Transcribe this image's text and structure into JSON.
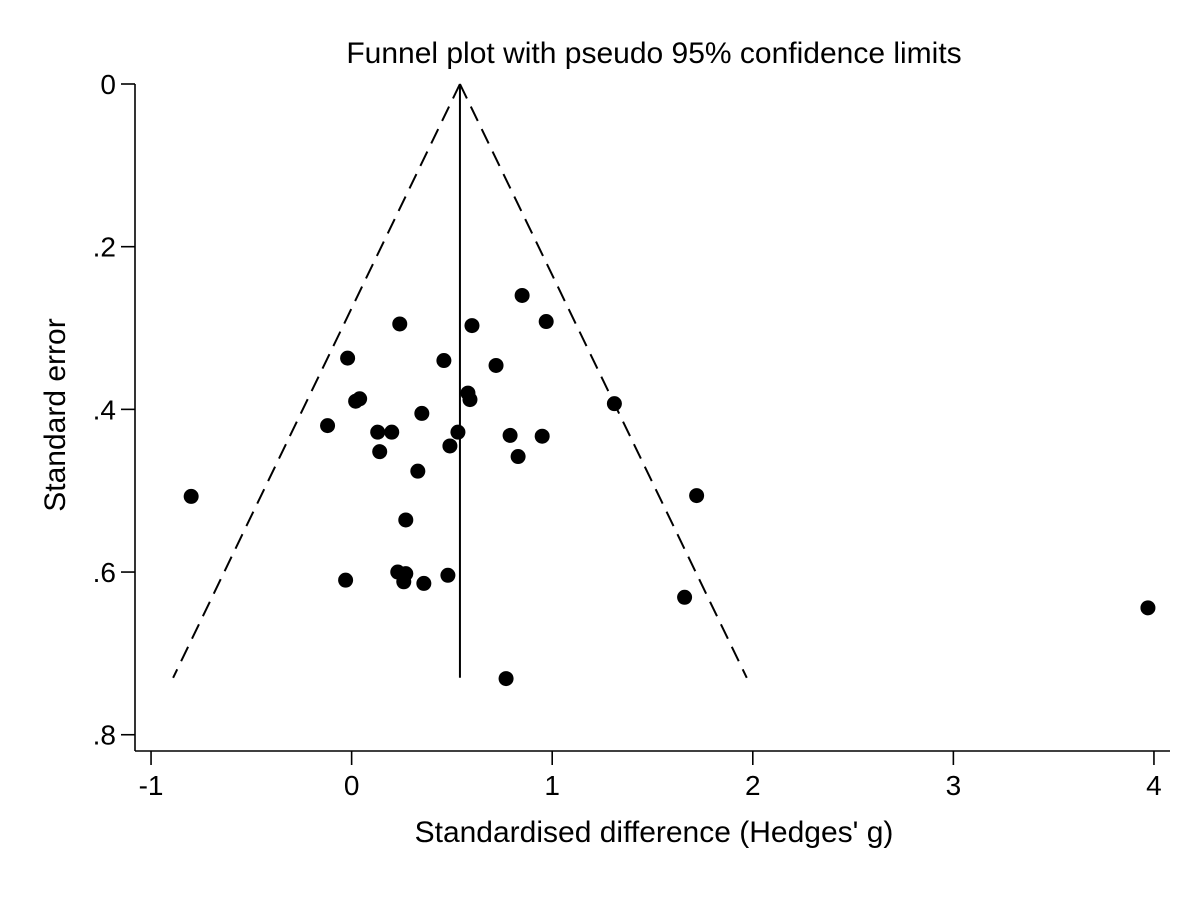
{
  "chart_data": {
    "type": "scatter",
    "title": "Funnel plot with pseudo 95% confidence limits",
    "xlabel": "Standardised difference (Hedges' g)",
    "ylabel": "Standard error",
    "xlim": [
      -1.08,
      4.08
    ],
    "ylim": [
      0,
      0.82
    ],
    "y_reversed": true,
    "xticks": [
      -1,
      0,
      1,
      2,
      3,
      4
    ],
    "xtick_labels": [
      "-1",
      "0",
      "1",
      "2",
      "3",
      "4"
    ],
    "yticks": [
      0,
      0.2,
      0.4,
      0.6,
      0.8
    ],
    "ytick_labels": [
      "0",
      ".2",
      ".4",
      ".6",
      ".8"
    ],
    "grid": false,
    "pooled_effect": 0.54,
    "confidence_limits": {
      "se_max": 0.73,
      "lower_at_se_max": -0.89,
      "upper_at_se_max": 1.97,
      "style": "dashed"
    },
    "series": [
      {
        "points": [
          {
            "x": 0.85,
            "y": 0.26
          },
          {
            "x": 0.24,
            "y": 0.295
          },
          {
            "x": 0.6,
            "y": 0.297
          },
          {
            "x": 0.97,
            "y": 0.292
          },
          {
            "x": -0.02,
            "y": 0.337
          },
          {
            "x": 0.46,
            "y": 0.34
          },
          {
            "x": 0.72,
            "y": 0.346
          },
          {
            "x": 0.58,
            "y": 0.38
          },
          {
            "x": 0.59,
            "y": 0.388
          },
          {
            "x": 0.02,
            "y": 0.39
          },
          {
            "x": 0.04,
            "y": 0.387
          },
          {
            "x": 1.31,
            "y": 0.393
          },
          {
            "x": 0.35,
            "y": 0.405
          },
          {
            "x": -0.12,
            "y": 0.42
          },
          {
            "x": 0.13,
            "y": 0.428
          },
          {
            "x": 0.2,
            "y": 0.428
          },
          {
            "x": 0.53,
            "y": 0.428
          },
          {
            "x": 0.79,
            "y": 0.432
          },
          {
            "x": 0.95,
            "y": 0.433
          },
          {
            "x": 0.49,
            "y": 0.445
          },
          {
            "x": 0.14,
            "y": 0.452
          },
          {
            "x": 0.83,
            "y": 0.458
          },
          {
            "x": 0.33,
            "y": 0.476
          },
          {
            "x": -0.8,
            "y": 0.507
          },
          {
            "x": 1.72,
            "y": 0.506
          },
          {
            "x": 0.27,
            "y": 0.536
          },
          {
            "x": 0.23,
            "y": 0.6
          },
          {
            "x": 0.27,
            "y": 0.602
          },
          {
            "x": 0.48,
            "y": 0.604
          },
          {
            "x": -0.03,
            "y": 0.61
          },
          {
            "x": 0.26,
            "y": 0.612
          },
          {
            "x": 0.36,
            "y": 0.614
          },
          {
            "x": 1.66,
            "y": 0.631
          },
          {
            "x": 3.97,
            "y": 0.644
          },
          {
            "x": 0.77,
            "y": 0.731
          }
        ]
      }
    ]
  }
}
